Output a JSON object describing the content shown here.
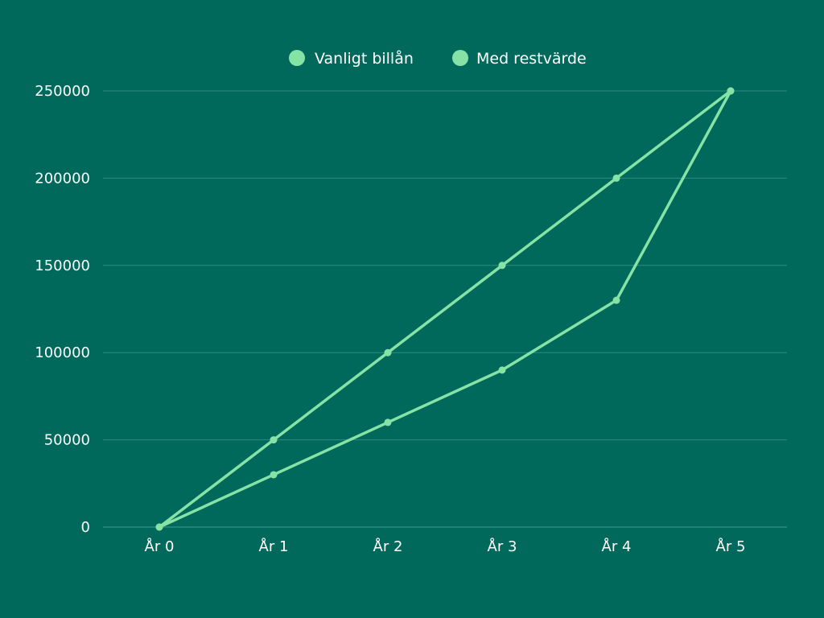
{
  "colors": {
    "background": "#00695C",
    "gridline": "#2E8B7E",
    "text": "#FFFFFF",
    "series_line": "#86E3A6"
  },
  "chart_data": {
    "type": "line",
    "title": "",
    "xlabel": "",
    "ylabel": "",
    "categories": [
      "År 0",
      "År 1",
      "År 2",
      "År 3",
      "År 4",
      "År 5"
    ],
    "series": [
      {
        "name": "Vanligt billån",
        "values": [
          0,
          50000,
          100000,
          150000,
          200000,
          250000
        ]
      },
      {
        "name": "Med restvärde",
        "values": [
          0,
          30000,
          60000,
          90000,
          130000,
          250000
        ]
      }
    ],
    "ylim": [
      0,
      250000
    ],
    "yticks": [
      0,
      50000,
      100000,
      150000,
      200000,
      250000
    ],
    "grid": true,
    "legend_position": "top-center"
  }
}
